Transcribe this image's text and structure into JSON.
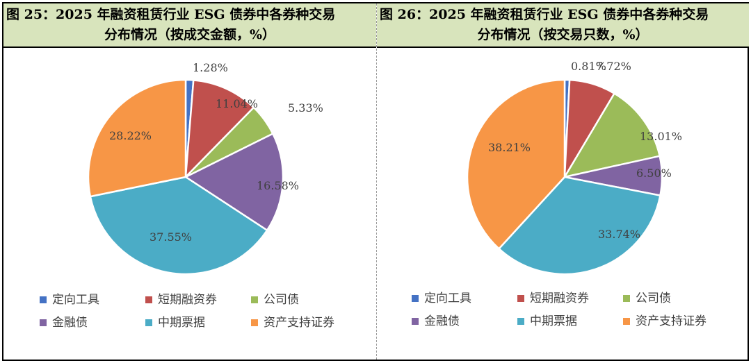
{
  "colors": {
    "定向工具": "#4472c4",
    "短期融资券": "#c0504d",
    "公司债": "#9bbb59",
    "金融债": "#8064a2",
    "中期票据": "#4bacc6",
    "资产支持证券": "#f79646"
  },
  "charts": [
    {
      "title_line1": "图 25：2025 年融资租赁行业 ESG 债券中各券种交易",
      "title_line2": "分布情况（按成交金额，%）"
    },
    {
      "title_line1": "图 26：2025 年融资租赁行业 ESG 债券中各券种交易",
      "title_line2": "分布情况（按交易只数，%）"
    }
  ],
  "chart_data": [
    {
      "type": "pie",
      "title": "图 25：2025 年融资租赁行业 ESG 债券中各券种交易分布情况（按成交金额，%）",
      "categories": [
        "定向工具",
        "短期融资券",
        "公司债",
        "金融债",
        "中期票据",
        "资产支持证券"
      ],
      "values": [
        1.28,
        11.04,
        5.33,
        16.58,
        37.55,
        28.22
      ],
      "labels": [
        "1.28%",
        "11.04%",
        "5.33%",
        "16.58%",
        "37.55%",
        "28.22%"
      ],
      "legend": "bottom"
    },
    {
      "type": "pie",
      "title": "图 26：2025 年融资租赁行业 ESG 债券中各券种交易分布情况（按交易只数，%）",
      "categories": [
        "定向工具",
        "短期融资券",
        "公司债",
        "金融债",
        "中期票据",
        "资产支持证券"
      ],
      "values": [
        0.81,
        7.72,
        13.01,
        6.5,
        33.74,
        38.21
      ],
      "labels": [
        "0.81%",
        "7.72%",
        "13.01%",
        "6.50%",
        "33.74%",
        "38.21%"
      ],
      "legend": "bottom"
    }
  ]
}
